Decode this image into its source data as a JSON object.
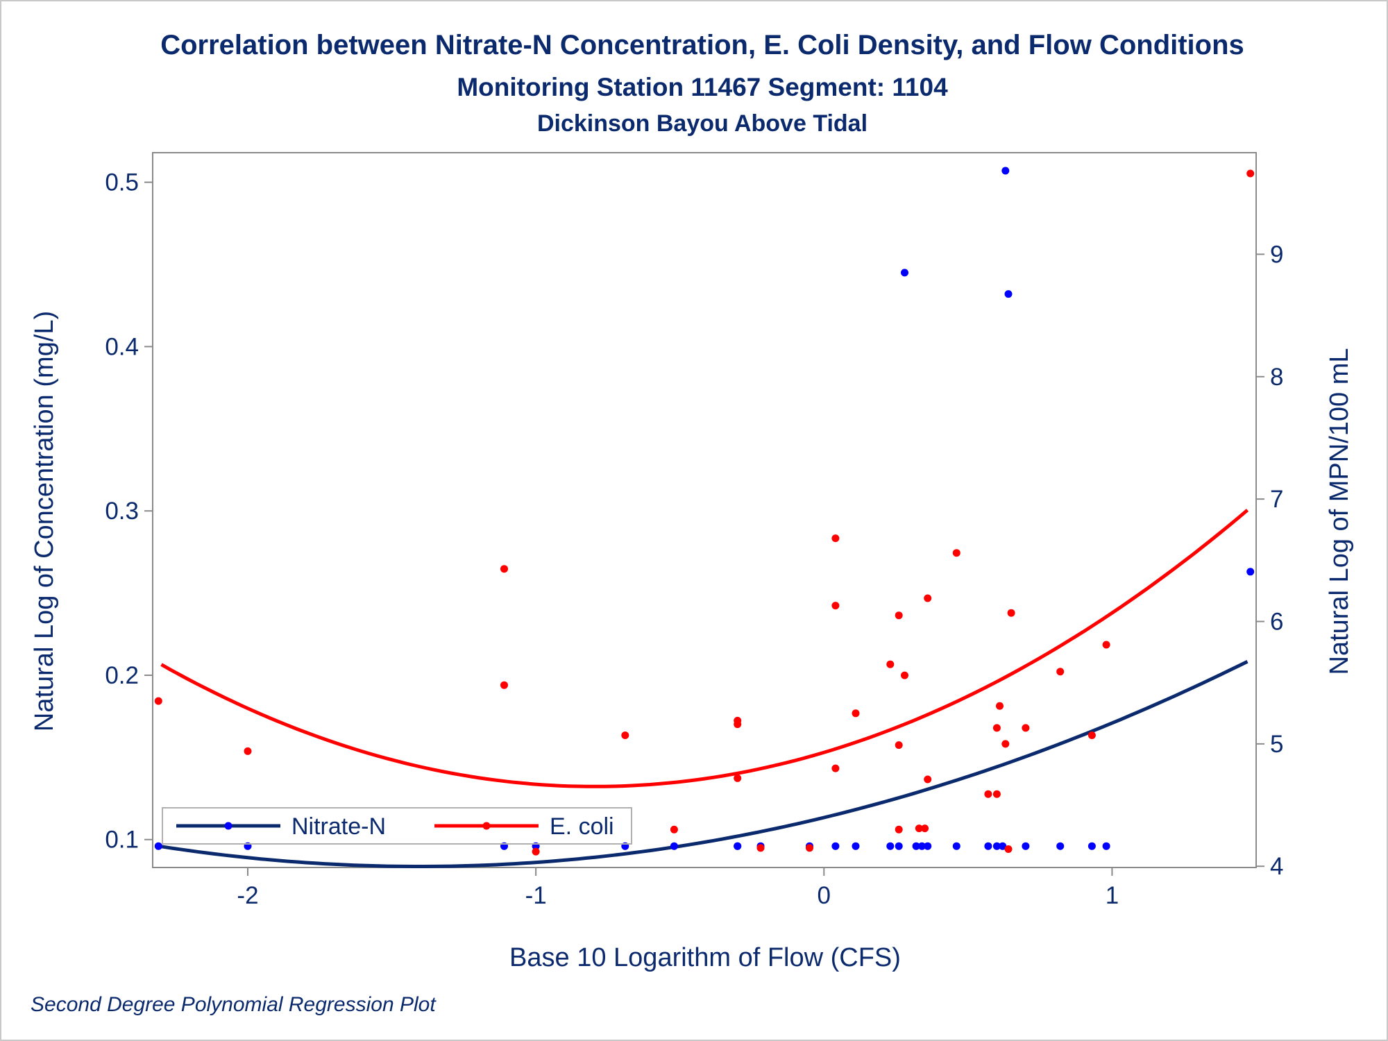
{
  "chart_data": {
    "type": "scatter",
    "title": "Correlation between Nitrate-N Concentration, E. Coli Density, and Flow Conditions",
    "subtitle": "Monitoring Station 11467 Segment: 1104",
    "subtitle2": "Dickinson Bayou Above Tidal",
    "xlabel": "Base 10 Logarithm of Flow (CFS)",
    "ylabel": "Natural Log of Concentration (mg/L)",
    "y2label": "Natural Log of MPN/100 mL",
    "footnote": "Second Degree Polynomial Regression Plot",
    "xlim": [
      -2.33,
      1.5
    ],
    "ylim": [
      0.083,
      0.518
    ],
    "y2lim": [
      3.99,
      9.83
    ],
    "xticks": [
      -2,
      -1,
      0,
      1
    ],
    "xtick_labels": [
      "-2",
      "-1",
      "0",
      "1"
    ],
    "yticks": [
      0.1,
      0.2,
      0.3,
      0.4,
      0.5
    ],
    "ytick_labels": [
      "0.1",
      "0.2",
      "0.3",
      "0.4",
      "0.5"
    ],
    "y2ticks": [
      4,
      5,
      6,
      7,
      8,
      9
    ],
    "y2tick_labels": [
      "4",
      "5",
      "6",
      "7",
      "8",
      "9"
    ],
    "legend_position": "bottom-left inside",
    "series": [
      {
        "name": "Nitrate-N",
        "axis": "left",
        "color": "#0000ff",
        "line_color": "#0b2a6e",
        "points": [
          [
            -2.31,
            0.096
          ],
          [
            -2.0,
            0.096
          ],
          [
            -1.11,
            0.096
          ],
          [
            -1.0,
            0.096
          ],
          [
            -0.69,
            0.096
          ],
          [
            -0.52,
            0.096
          ],
          [
            -0.3,
            0.096
          ],
          [
            -0.3,
            0.096
          ],
          [
            -0.22,
            0.096
          ],
          [
            -0.05,
            0.096
          ],
          [
            0.04,
            0.096
          ],
          [
            0.11,
            0.096
          ],
          [
            0.23,
            0.096
          ],
          [
            0.26,
            0.096
          ],
          [
            0.28,
            0.445
          ],
          [
            0.32,
            0.096
          ],
          [
            0.34,
            0.096
          ],
          [
            0.36,
            0.096
          ],
          [
            0.46,
            0.096
          ],
          [
            0.57,
            0.096
          ],
          [
            0.6,
            0.096
          ],
          [
            0.62,
            0.096
          ],
          [
            0.63,
            0.507
          ],
          [
            0.64,
            0.432
          ],
          [
            0.7,
            0.096
          ],
          [
            0.82,
            0.096
          ],
          [
            0.93,
            0.096
          ],
          [
            0.98,
            0.096
          ],
          [
            1.48,
            0.263
          ]
        ],
        "fit": [
          0.1134,
          0.0424,
          0.0151
        ]
      },
      {
        "name": "E. coli",
        "axis": "right",
        "color": "#ff0000",
        "line_color": "#ff0000",
        "points": [
          [
            -2.31,
            5.35
          ],
          [
            -2.0,
            4.94
          ],
          [
            -1.11,
            6.43
          ],
          [
            -1.11,
            5.48
          ],
          [
            -1.0,
            4.12
          ],
          [
            -0.69,
            5.07
          ],
          [
            -0.52,
            4.3
          ],
          [
            -0.3,
            5.19
          ],
          [
            -0.3,
            5.16
          ],
          [
            -0.3,
            4.72
          ],
          [
            -0.22,
            4.15
          ],
          [
            -0.05,
            4.15
          ],
          [
            0.04,
            6.68
          ],
          [
            0.04,
            6.13
          ],
          [
            0.04,
            4.8
          ],
          [
            0.11,
            5.25
          ],
          [
            0.23,
            5.65
          ],
          [
            0.26,
            6.05
          ],
          [
            0.26,
            4.99
          ],
          [
            0.26,
            4.3
          ],
          [
            0.28,
            5.56
          ],
          [
            0.33,
            4.31
          ],
          [
            0.35,
            4.31
          ],
          [
            0.36,
            6.19
          ],
          [
            0.36,
            4.71
          ],
          [
            0.46,
            6.56
          ],
          [
            0.57,
            4.59
          ],
          [
            0.6,
            4.59
          ],
          [
            0.6,
            5.13
          ],
          [
            0.61,
            5.31
          ],
          [
            0.63,
            5.0
          ],
          [
            0.64,
            4.14
          ],
          [
            0.65,
            6.07
          ],
          [
            0.7,
            5.13
          ],
          [
            0.82,
            5.59
          ],
          [
            0.93,
            5.07
          ],
          [
            0.98,
            5.81
          ],
          [
            1.48,
            9.66
          ]
        ],
        "fit": [
          4.93,
          0.7,
          0.44
        ]
      }
    ]
  }
}
